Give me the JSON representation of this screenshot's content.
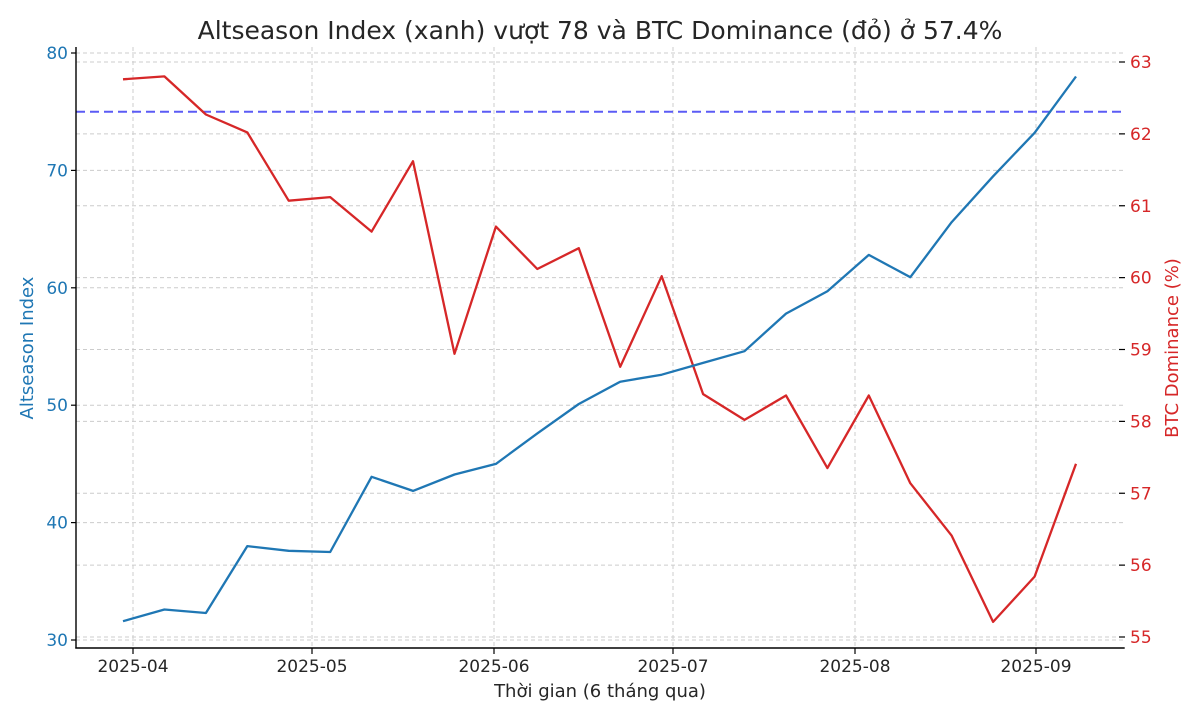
{
  "chart_data": {
    "type": "line",
    "title": "Altseason Index (xanh) vượt 78 và BTC Dominance (đỏ) ở 57.4%",
    "xlabel": "Thời gian (6 tháng qua)",
    "ylabel": "Altseason Index",
    "ylabel_right": "BTC Dominance (%)",
    "ylim": [
      29.2,
      80.5
    ],
    "ylim_right": [
      54.9,
      63.2
    ],
    "x_tick_labels": [
      "2025-04",
      "2025-05",
      "2025-06",
      "2025-07",
      "2025-08",
      "2025-09"
    ],
    "y_ticks_left": [
      30,
      40,
      50,
      60,
      70,
      80
    ],
    "y_ticks_right": [
      55,
      56,
      57,
      58,
      59,
      60,
      61,
      62,
      63
    ],
    "grid": true,
    "threshold_line": {
      "axis": "left",
      "value": 75,
      "color": "#5b5bf5",
      "style": "dashed"
    },
    "x": [
      "2025-03-28",
      "2025-04-04",
      "2025-04-11",
      "2025-04-18",
      "2025-04-25",
      "2025-05-02",
      "2025-05-09",
      "2025-05-16",
      "2025-05-23",
      "2025-05-30",
      "2025-06-06",
      "2025-06-13",
      "2025-06-20",
      "2025-06-27",
      "2025-07-04",
      "2025-07-11",
      "2025-07-18",
      "2025-07-25",
      "2025-08-01",
      "2025-08-08",
      "2025-08-15",
      "2025-08-22",
      "2025-08-29",
      "2025-09-05"
    ],
    "series": [
      {
        "name": "Altseason Index",
        "axis": "left",
        "color": "#1f77b4",
        "values": [
          31.6,
          32.6,
          32.3,
          38.0,
          37.6,
          37.5,
          43.9,
          42.7,
          44.1,
          45.0,
          47.6,
          50.1,
          52.0,
          52.6,
          53.6,
          54.6,
          57.8,
          59.7,
          62.8,
          60.9,
          65.6,
          69.5,
          73.2,
          78.0
        ]
      },
      {
        "name": "BTC Dominance (%)",
        "axis": "right",
        "color": "#d62728",
        "values": [
          62.76,
          62.8,
          62.27,
          62.02,
          61.07,
          61.12,
          60.64,
          61.62,
          58.94,
          60.71,
          60.12,
          60.41,
          58.76,
          60.02,
          58.38,
          58.02,
          58.36,
          57.35,
          58.36,
          57.14,
          56.41,
          55.21,
          55.84,
          57.41
        ]
      }
    ]
  },
  "colors": {
    "left_axis": "#1f77b4",
    "right_axis": "#d62728",
    "threshold": "#5b5bf5",
    "grid": "#cccccc",
    "text": "#262626"
  }
}
